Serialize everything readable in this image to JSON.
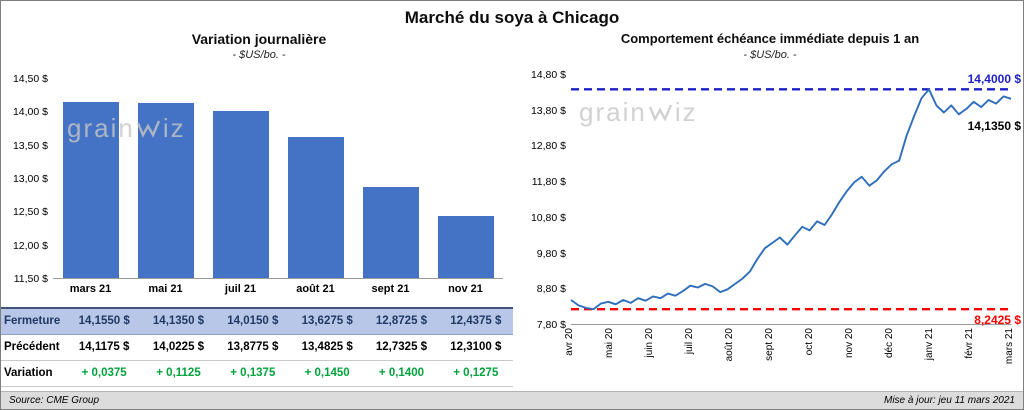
{
  "title": "Marché du soya à Chicago",
  "left_chart": {
    "title": "Variation  journalière",
    "subtitle": "- $US/bo. -"
  },
  "right_chart": {
    "title": "Comportement  échéance immédiate depuis 1 an",
    "subtitle": "- $US/bo. -"
  },
  "watermark": {
    "part1": "grain",
    "part2": "iz"
  },
  "footer": {
    "source": "Source: CME Group",
    "updated": "Mise à jour: jeu 11 mars 2021"
  },
  "table": {
    "rows": [
      {
        "label": "Fermeture",
        "class": "row-fermeture",
        "values": [
          "14,1550  $",
          "14,1350  $",
          "14,0150  $",
          "13,6275  $",
          "12,8725  $",
          "12,4375  $"
        ]
      },
      {
        "label": "Précédent",
        "class": "row-precedent",
        "values": [
          "14,1175  $",
          "14,0225  $",
          "13,8775  $",
          "13,4825  $",
          "12,7325  $",
          "12,3100  $"
        ]
      },
      {
        "label": "Variation",
        "class": "row-variation",
        "values": [
          "+ 0,0375",
          "+ 0,1125",
          "+ 0,1375",
          "+ 0,1450",
          "+ 0,1400",
          "+ 0,1275"
        ]
      }
    ]
  },
  "chart_data": [
    {
      "type": "bar",
      "title": "Variation journalière ($US/bo.)",
      "categories": [
        "mars 21",
        "mai 21",
        "juil 21",
        "août 21",
        "sept 21",
        "nov 21"
      ],
      "values": [
        14.155,
        14.135,
        14.015,
        13.6275,
        12.8725,
        12.4375
      ],
      "ylim": [
        11.5,
        14.5
      ],
      "y_ticks": [
        "14,50 $",
        "14,00 $",
        "13,50 $",
        "13,00 $",
        "12,50 $",
        "12,00 $",
        "11,50 $"
      ],
      "bar_color": "#4472C4",
      "grid": false,
      "legend": "none"
    },
    {
      "type": "line",
      "title": "Comportement échéance immédiate depuis 1 an ($US/bo.)",
      "x_ticks": [
        "avr 20",
        "mai 20",
        "juin 20",
        "juil 20",
        "août 20",
        "sept 20",
        "oct 20",
        "nov 20",
        "déc 20",
        "janv 21",
        "févr 21",
        "mars 21"
      ],
      "ylim": [
        7.8,
        14.8
      ],
      "y_ticks": [
        "14,80 $",
        "13,80 $",
        "12,80 $",
        "11,80 $",
        "10,80 $",
        "9,80 $",
        "8,80 $",
        "7,80 $"
      ],
      "values": [
        8.5,
        8.35,
        8.28,
        8.2425,
        8.4,
        8.45,
        8.38,
        8.5,
        8.42,
        8.55,
        8.48,
        8.6,
        8.55,
        8.68,
        8.62,
        8.75,
        8.9,
        8.85,
        8.95,
        8.88,
        8.72,
        8.8,
        8.95,
        9.1,
        9.3,
        9.65,
        9.95,
        10.1,
        10.25,
        10.05,
        10.3,
        10.55,
        10.45,
        10.7,
        10.6,
        10.9,
        11.25,
        11.55,
        11.8,
        11.95,
        11.7,
        11.85,
        12.1,
        12.3,
        12.4,
        13.1,
        13.65,
        14.15,
        14.4,
        13.95,
        13.75,
        13.95,
        13.7,
        13.85,
        14.05,
        13.9,
        14.1,
        14.0,
        14.2,
        14.135
      ],
      "line_color": "#2F6EBA",
      "max_line": {
        "value": 14.4,
        "label": "14,4000 $",
        "color": "#1F1FC8"
      },
      "min_line": {
        "value": 8.2425,
        "label": "8,2425 $",
        "color": "#FF0000"
      },
      "last_point": {
        "value": 14.135,
        "label": "14,1350 $",
        "color": "#000000"
      },
      "grid": false,
      "legend": "none"
    }
  ]
}
